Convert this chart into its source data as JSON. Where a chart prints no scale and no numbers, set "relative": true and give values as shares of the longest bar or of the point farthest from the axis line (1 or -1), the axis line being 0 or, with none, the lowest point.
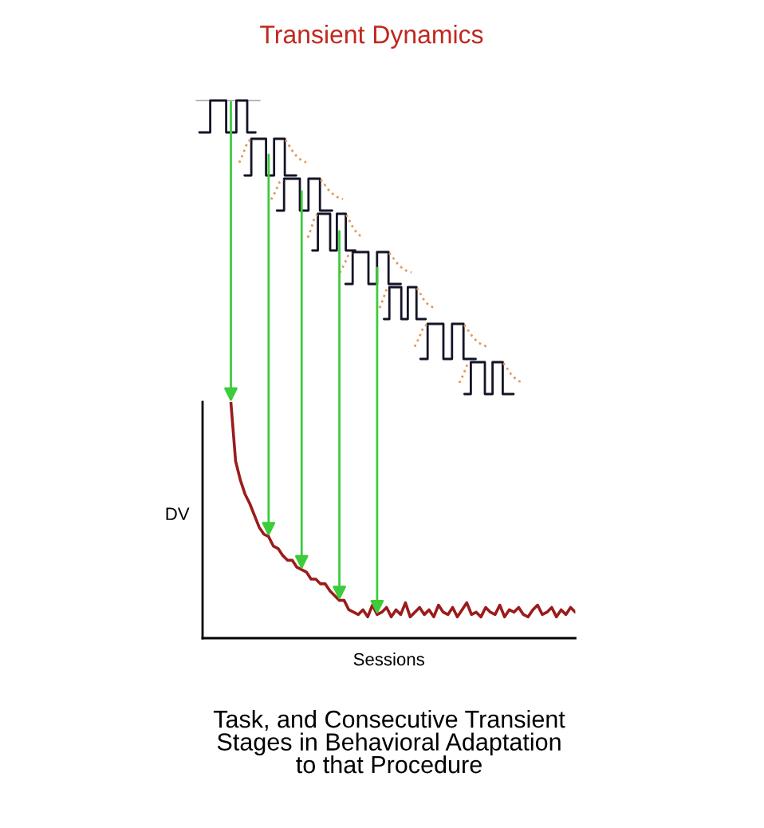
{
  "chart_data": {
    "type": "line",
    "title": "Transient Dynamics",
    "xlabel": "Sessions",
    "ylabel": "DV",
    "annotations": [
      "Task, and Consecutive Transient\nStages in Behavioral Adaptation\nto that Procedure"
    ],
    "relative": true,
    "categories": [
      null,
      null,
      null,
      null,
      null,
      null,
      null,
      null,
      null,
      null,
      null,
      null,
      null,
      null,
      null,
      null,
      null,
      null,
      null,
      null,
      null,
      null,
      null,
      null,
      null,
      null,
      null,
      null,
      null,
      null,
      null,
      null,
      null,
      null,
      null,
      null,
      null,
      null,
      null,
      null,
      null,
      null,
      null,
      null,
      null,
      null,
      null,
      null,
      null,
      null,
      null,
      null,
      null,
      null,
      null,
      null,
      null,
      null,
      null,
      null,
      null,
      null,
      null,
      null,
      null,
      null,
      null,
      null,
      null,
      null,
      null,
      null,
      null,
      null,
      null,
      null,
      null,
      null,
      null,
      null
    ],
    "series": [
      {
        "color": "#9b1c1c",
        "values": [
          null,
          null,
          null,
          null,
          null,
          null,
          1,
          0.75,
          0.67,
          0.61,
          0.57,
          0.52,
          0.47,
          0.44,
          0.43,
          0.39,
          0.38,
          0.35,
          0.33,
          0.33,
          0.3,
          0.29,
          0.28,
          0.25,
          0.25,
          0.23,
          0.23,
          0.2,
          0.18,
          0.16,
          0.16,
          0.12,
          0.11,
          0.1,
          0.12,
          0.09,
          0.14,
          0.1,
          0.11,
          0.13,
          0.09,
          0.12,
          0.1,
          0.15,
          0.09,
          0.11,
          0.13,
          0.1,
          0.12,
          0.09,
          0.14,
          0.11,
          0.1,
          0.13,
          0.09,
          0.12,
          0.15,
          0.1,
          0.11,
          0.09,
          0.13,
          0.11,
          0.1,
          0.14,
          0.09,
          0.12,
          0.11,
          0.13,
          0.1,
          0.09,
          0.12,
          0.14,
          0.1,
          0.11,
          0.13,
          0.09,
          0.12,
          0.1,
          0.13,
          0.11
        ]
      }
    ]
  }
}
